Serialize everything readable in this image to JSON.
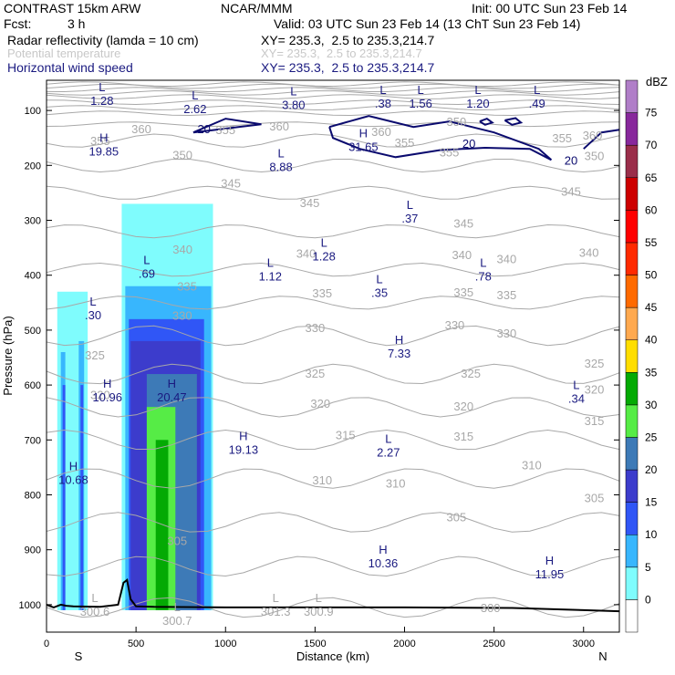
{
  "header": {
    "model": "CONTRAST 15km ARW",
    "org": "NCAR/MMM",
    "init": "Init: 00 UTC Sun 23 Feb 14",
    "fcst_label": "Fcst:",
    "fcst_value": "3 h",
    "valid": "Valid: 03 UTC Sun 23 Feb 14 (13 ChT Sun 23 Feb 14)",
    "fields": [
      {
        "name": "Radar reflectivity (lamda = 10 cm)",
        "xy": "XY= 235.3,  2.5 to 235.3,214.7"
      },
      {
        "name": "Potential temperature",
        "xy": "XY= 235.3,  2.5 to 235.3,214.7"
      },
      {
        "name": "Horizontal wind speed",
        "xy": "XY= 235.3,  2.5 to 235.3,214.7"
      }
    ]
  },
  "colors": {
    "dbz": [
      "#7ffcfd",
      "#38b6fd",
      "#3056f6",
      "#3c3ccc",
      "#3d7ab7",
      "#56ec46",
      "#04aa04",
      "#ffde00",
      "#ffa94f",
      "#ff6a00",
      "#ff2a00",
      "#ff0000",
      "#cd0000",
      "#9a2e4a",
      "#88289c",
      "#b07ec8",
      "#ffffff"
    ],
    "wind_contour": "#0a0a6e",
    "theta_contour": "#a8a8a8",
    "terrain": "#000000",
    "label_blue": "#1a1a80"
  },
  "chart_data": {
    "type": "cross-section",
    "x_axis": {
      "label": "Distance (km)",
      "range": [
        0,
        3200
      ],
      "ticks": [
        0,
        500,
        1000,
        1500,
        2000,
        2500,
        3000
      ],
      "end_labels": [
        "S",
        "N"
      ]
    },
    "y_axis": {
      "label": "Pressure (hPa)",
      "range": [
        1050,
        45
      ],
      "ticks": [
        100,
        200,
        300,
        400,
        500,
        600,
        700,
        800,
        900,
        1000
      ]
    },
    "colorbar": {
      "unit": "dBZ",
      "levels": [
        0,
        5,
        10,
        15,
        20,
        25,
        30,
        35,
        40,
        45,
        50,
        55,
        60,
        65,
        70,
        75
      ]
    },
    "theta_labels": [
      {
        "text": "360",
        "x": 530,
        "p": 133
      },
      {
        "text": "355",
        "x": 1000,
        "p": 135
      },
      {
        "text": "360",
        "x": 1300,
        "p": 128
      },
      {
        "text": "360",
        "x": 1870,
        "p": 138
      },
      {
        "text": "355",
        "x": 2000,
        "p": 158
      },
      {
        "text": "350",
        "x": 2290,
        "p": 120
      },
      {
        "text": "355",
        "x": 2880,
        "p": 150
      },
      {
        "text": "360",
        "x": 3050,
        "p": 145
      },
      {
        "text": "355",
        "x": 300,
        "p": 155
      },
      {
        "text": "350",
        "x": 760,
        "p": 180
      },
      {
        "text": "350",
        "x": 3060,
        "p": 182
      },
      {
        "text": "355",
        "x": 2250,
        "p": 175
      },
      {
        "text": "345",
        "x": 1470,
        "p": 268
      },
      {
        "text": "345",
        "x": 2930,
        "p": 247
      },
      {
        "text": "345",
        "x": 1030,
        "p": 232
      },
      {
        "text": "345",
        "x": 2330,
        "p": 305
      },
      {
        "text": "340",
        "x": 1450,
        "p": 360
      },
      {
        "text": "340",
        "x": 2320,
        "p": 362
      },
      {
        "text": "340",
        "x": 2570,
        "p": 370
      },
      {
        "text": "340",
        "x": 3030,
        "p": 358
      },
      {
        "text": "340",
        "x": 760,
        "p": 352
      },
      {
        "text": "335",
        "x": 785,
        "p": 420
      },
      {
        "text": "335",
        "x": 1540,
        "p": 432
      },
      {
        "text": "335",
        "x": 2330,
        "p": 430
      },
      {
        "text": "335",
        "x": 2570,
        "p": 435
      },
      {
        "text": "330",
        "x": 758,
        "p": 473
      },
      {
        "text": "330",
        "x": 1500,
        "p": 495
      },
      {
        "text": "330",
        "x": 2280,
        "p": 490
      },
      {
        "text": "330",
        "x": 2570,
        "p": 505
      },
      {
        "text": "325",
        "x": 270,
        "p": 545
      },
      {
        "text": "325",
        "x": 1500,
        "p": 578
      },
      {
        "text": "325",
        "x": 2370,
        "p": 578
      },
      {
        "text": "325",
        "x": 3060,
        "p": 560
      },
      {
        "text": "320",
        "x": 300,
        "p": 617
      },
      {
        "text": "320",
        "x": 1530,
        "p": 633
      },
      {
        "text": "320",
        "x": 2330,
        "p": 638
      },
      {
        "text": "320",
        "x": 3060,
        "p": 607
      },
      {
        "text": "315",
        "x": 1670,
        "p": 690
      },
      {
        "text": "315",
        "x": 2330,
        "p": 693
      },
      {
        "text": "315",
        "x": 3060,
        "p": 665
      },
      {
        "text": "310",
        "x": 1540,
        "p": 773
      },
      {
        "text": "310",
        "x": 1950,
        "p": 778
      },
      {
        "text": "310",
        "x": 2710,
        "p": 745
      },
      {
        "text": "305",
        "x": 730,
        "p": 883
      },
      {
        "text": "305",
        "x": 2290,
        "p": 840
      },
      {
        "text": "305",
        "x": 3060,
        "p": 805
      },
      {
        "text": "300",
        "x": 2480,
        "p": 1005
      }
    ],
    "theta_ticks": [],
    "extrema": [
      {
        "t": "L",
        "v": "1.28",
        "x": 310,
        "p": 70,
        "c": "blue"
      },
      {
        "t": "L",
        "v": "2.62",
        "x": 830,
        "p": 85,
        "c": "blue"
      },
      {
        "t": "L",
        "v": "3.80",
        "x": 1380,
        "p": 77,
        "c": "blue"
      },
      {
        "t": "L",
        "v": ".38",
        "x": 1880,
        "p": 75,
        "c": "blue"
      },
      {
        "t": "L",
        "v": "1.56",
        "x": 2090,
        "p": 75,
        "c": "blue"
      },
      {
        "t": "L",
        "v": "1.20",
        "x": 2410,
        "p": 75,
        "c": "blue"
      },
      {
        "t": "L",
        "v": ".49",
        "x": 2740,
        "p": 75,
        "c": "blue"
      },
      {
        "t": "H",
        "v": "19.85",
        "x": 320,
        "p": 162,
        "c": "blue"
      },
      {
        "t": "H",
        "v": "31.65",
        "x": 1770,
        "p": 154,
        "c": "blue"
      },
      {
        "t": "L",
        "v": "8.88",
        "x": 1310,
        "p": 190,
        "c": "blue"
      },
      {
        "t": "L",
        "v": ".37",
        "x": 2030,
        "p": 284,
        "c": "blue"
      },
      {
        "t": "L",
        "v": "1.28",
        "x": 1550,
        "p": 353,
        "c": "blue"
      },
      {
        "t": "L",
        "v": ".69",
        "x": 560,
        "p": 385,
        "c": "blue"
      },
      {
        "t": "L",
        "v": "1.12",
        "x": 1250,
        "p": 390,
        "c": "blue"
      },
      {
        "t": "L",
        "v": ".78",
        "x": 2440,
        "p": 390,
        "c": "blue"
      },
      {
        "t": "L",
        "v": ".35",
        "x": 1860,
        "p": 420,
        "c": "blue"
      },
      {
        "t": "L",
        "v": ".30",
        "x": 260,
        "p": 460,
        "c": "blue"
      },
      {
        "t": "H",
        "v": "7.33",
        "x": 1970,
        "p": 530,
        "c": "blue"
      },
      {
        "t": "H",
        "v": "10.96",
        "x": 340,
        "p": 610,
        "c": "blue"
      },
      {
        "t": "H",
        "v": "20.47",
        "x": 700,
        "p": 610,
        "c": "blue"
      },
      {
        "t": "L",
        "v": ".34",
        "x": 2960,
        "p": 612,
        "c": "blue"
      },
      {
        "t": "H",
        "v": "19.13",
        "x": 1100,
        "p": 705,
        "c": "blue"
      },
      {
        "t": "L",
        "v": "2.27",
        "x": 1910,
        "p": 710,
        "c": "blue"
      },
      {
        "t": "H",
        "v": "10.68",
        "x": 150,
        "p": 760,
        "c": "blue"
      },
      {
        "t": "H",
        "v": "10.36",
        "x": 1880,
        "p": 912,
        "c": "blue"
      },
      {
        "t": "H",
        "v": "11.95",
        "x": 2810,
        "p": 932,
        "c": "blue"
      },
      {
        "t": "L",
        "v": "300.6",
        "x": 270,
        "p": 1000,
        "c": "gray"
      },
      {
        "t": "L",
        "v": "300.7",
        "x": 730,
        "p": 1017,
        "c": "gray"
      },
      {
        "t": "L",
        "v": "301.3",
        "x": 1280,
        "p": 1000,
        "c": "gray"
      },
      {
        "t": "L",
        "v": "300.9",
        "x": 1520,
        "p": 1000,
        "c": "gray"
      }
    ],
    "wind_labels": [
      {
        "text": "20",
        "x": 880,
        "p": 133
      },
      {
        "text": "20",
        "x": 2360,
        "p": 160
      },
      {
        "text": "20",
        "x": 2930,
        "p": 190
      }
    ]
  }
}
